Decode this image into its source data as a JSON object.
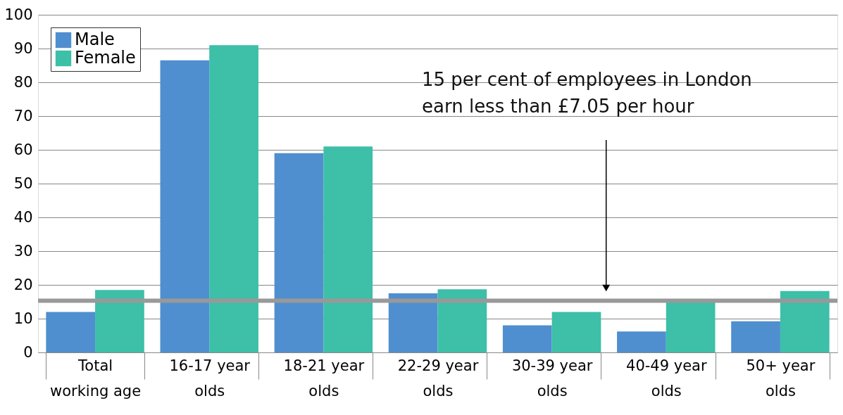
{
  "chart_data": {
    "type": "bar",
    "categories": [
      "Total working age",
      "16-17 year olds",
      "18-21 year olds",
      "22-29 year olds",
      "30-39 year olds",
      "40-49 year olds",
      "50+ year olds"
    ],
    "series": [
      {
        "name": "Male",
        "color": "#4f8fcf",
        "values": [
          12,
          86.5,
          59,
          17.5,
          8,
          6.2,
          9.2
        ]
      },
      {
        "name": "Female",
        "color": "#3dbfa8",
        "values": [
          18.5,
          91,
          61,
          18.7,
          12,
          15.2,
          18.2
        ]
      }
    ],
    "ylim": [
      0,
      100
    ],
    "yticks": [
      0,
      10,
      20,
      30,
      40,
      50,
      60,
      70,
      80,
      90,
      100
    ],
    "grid": "y",
    "legend": "top left",
    "ref_lines": [
      {
        "axis": "y",
        "value": 15.3,
        "color": "#999999"
      }
    ],
    "annotations": [
      "15 per cent of employees in London earn less than £7.05 per hour"
    ]
  }
}
